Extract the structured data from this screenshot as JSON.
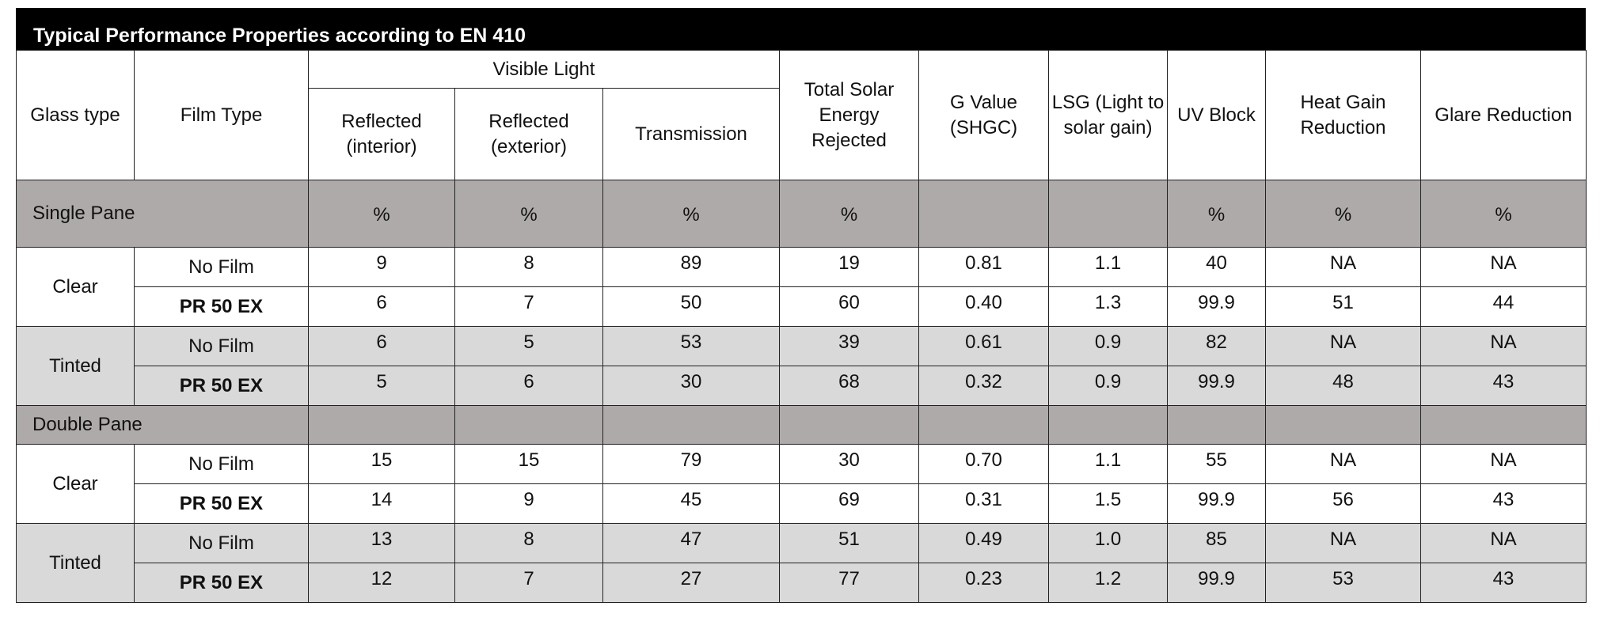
{
  "title": "Typical Performance Properties according to EN 410",
  "headers": {
    "glass_type": "Glass type",
    "film_type": "Film Type",
    "visible_light": "Visible Light",
    "reflected_interior": "Reflected (interior)",
    "reflected_exterior": "Reflected (exterior)",
    "transmission": "Transmission",
    "total_solar": "Total Solar Energy Rejected",
    "g_value": "G Value (SHGC)",
    "lsg": "LSG (Light to solar gain)",
    "uv_block": "UV Block",
    "heat_gain": "Heat Gain Reduction",
    "glare": "Glare Reduction"
  },
  "sections": [
    {
      "label": "Single Pane",
      "units": [
        "%",
        "%",
        "%",
        "%",
        "",
        "",
        "%",
        "%",
        "%"
      ],
      "groups": [
        {
          "glass": "Clear",
          "shade": "white",
          "rows": [
            {
              "film": "No Film",
              "bold": false,
              "values": [
                "9",
                "8",
                "89",
                "19",
                "0.81",
                "1.1",
                "40",
                "NA",
                "NA"
              ]
            },
            {
              "film": "PR 50 EX",
              "bold": true,
              "values": [
                "6",
                "7",
                "50",
                "60",
                "0.40",
                "1.3",
                "99.9",
                "51",
                "44"
              ]
            }
          ]
        },
        {
          "glass": "Tinted",
          "shade": "grey",
          "rows": [
            {
              "film": "No Film",
              "bold": false,
              "values": [
                "6",
                "5",
                "53",
                "39",
                "0.61",
                "0.9",
                "82",
                "NA",
                "NA"
              ]
            },
            {
              "film": "PR 50 EX",
              "bold": true,
              "values": [
                "5",
                "6",
                "30",
                "68",
                "0.32",
                "0.9",
                "99.9",
                "48",
                "43"
              ]
            }
          ]
        }
      ]
    },
    {
      "label": "Double Pane",
      "units": [
        "",
        "",
        "",
        "",
        "",
        "",
        "",
        "",
        ""
      ],
      "groups": [
        {
          "glass": "Clear",
          "shade": "white",
          "rows": [
            {
              "film": "No Film",
              "bold": false,
              "values": [
                "15",
                "15",
                "79",
                "30",
                "0.70",
                "1.1",
                "55",
                "NA",
                "NA"
              ]
            },
            {
              "film": "PR 50 EX",
              "bold": true,
              "values": [
                "14",
                "9",
                "45",
                "69",
                "0.31",
                "1.5",
                "99.9",
                "56",
                "43"
              ]
            }
          ]
        },
        {
          "glass": "Tinted",
          "shade": "grey",
          "rows": [
            {
              "film": "No Film",
              "bold": false,
              "values": [
                "13",
                "8",
                "47",
                "51",
                "0.49",
                "1.0",
                "85",
                "NA",
                "NA"
              ]
            },
            {
              "film": "PR 50 EX",
              "bold": true,
              "values": [
                "12",
                "7",
                "27",
                "77",
                "0.23",
                "1.2",
                "99.9",
                "53",
                "43"
              ]
            }
          ]
        }
      ]
    }
  ]
}
